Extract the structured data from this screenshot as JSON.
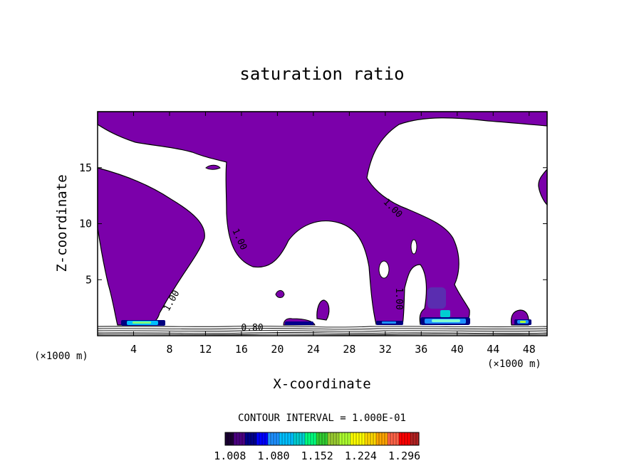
{
  "chart_data": {
    "type": "contour",
    "title": "saturation ratio",
    "xlabel": "X-coordinate",
    "ylabel": "Z-coordinate",
    "x_unit_left": "(×1000 m)",
    "x_unit_right": "(×1000 m)",
    "xlim": [
      0,
      50
    ],
    "ylim": [
      0,
      20
    ],
    "x_ticks": [
      4,
      8,
      12,
      16,
      20,
      24,
      28,
      32,
      36,
      40,
      44,
      48
    ],
    "y_ticks": [
      5,
      10,
      15
    ],
    "contour_labels": [
      {
        "text": "1.00",
        "x": 15.5,
        "z": 8.5,
        "rot": 65
      },
      {
        "text": "1.00",
        "x": 32.6,
        "z": 11.2,
        "rot": 45
      },
      {
        "text": "1.00",
        "x": 8.5,
        "z": 3.0,
        "rot": -60
      },
      {
        "text": "1.00",
        "x": 33.2,
        "z": 3.3,
        "rot": 90
      },
      {
        "text": "0.80",
        "x": 17.2,
        "z": 0.45,
        "rot": 0
      }
    ],
    "contour_interval_text": "CONTOUR INTERVAL = 1.000E-01",
    "colorbar": {
      "tick_labels": [
        "1.008",
        "1.080",
        "1.152",
        "1.224",
        "1.296"
      ],
      "min": 1.0,
      "max": 1.32,
      "colors": [
        "#1a0033",
        "#4b0082",
        "#00008b",
        "#0000ff",
        "#1e90ff",
        "#00bfff",
        "#00ced1",
        "#00ff7f",
        "#32cd32",
        "#9acd32",
        "#adff2f",
        "#ffff00",
        "#ffd700",
        "#ffa500",
        "#ff6347",
        "#ff0000",
        "#b22222"
      ]
    },
    "fill_color": "#7b00aa",
    "grid": false
  }
}
